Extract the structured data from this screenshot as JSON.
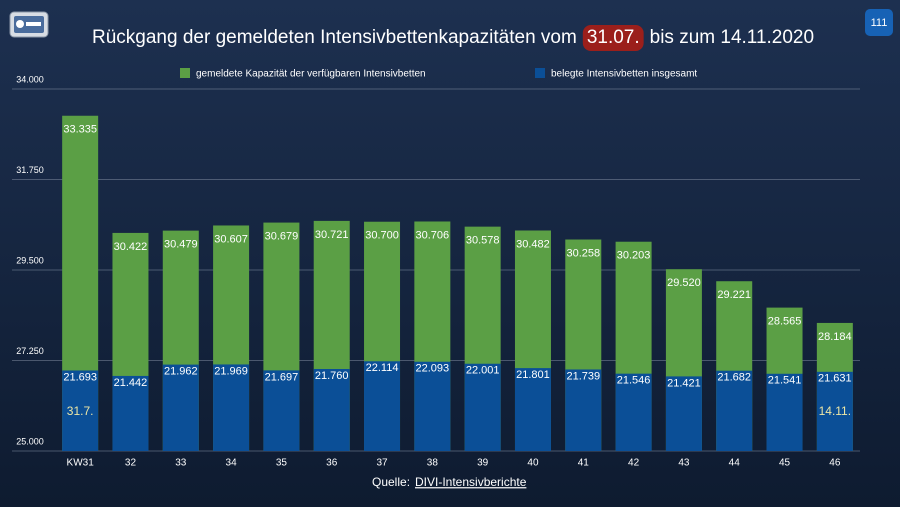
{
  "chart_data": {
    "type": "bar",
    "title": "Rückgang der gemeldeten Intensivbettenkapazitäten vom",
    "title_highlight": "31.07.",
    "title_end": "bis zum 14.11.2020",
    "page_number": "111",
    "source_label": "Quelle:",
    "source_link": "DIVI-Intensivberichte",
    "annotations": [
      "31.7.",
      "14.11."
    ],
    "categories": [
      "KW31",
      "32",
      "33",
      "34",
      "35",
      "36",
      "37",
      "38",
      "39",
      "40",
      "41",
      "42",
      "43",
      "44",
      "45",
      "46"
    ],
    "series": [
      {
        "name": "gemeldete Kapazität der verfügbaren Intensivbetten",
        "color": "#5b9f45",
        "values": [
          33335,
          30422,
          30479,
          30607,
          30679,
          30721,
          30700,
          30706,
          30578,
          30482,
          30258,
          30203,
          29520,
          29221,
          28565,
          28184
        ],
        "value_labels": [
          "33.335",
          "30.422",
          "30.479",
          "30.607",
          "30.679",
          "30.721",
          "30.700",
          "30.706",
          "30.578",
          "30.482",
          "30.258",
          "30.203",
          "29.520",
          "29.221",
          "28.565",
          "28.184"
        ]
      },
      {
        "name": "belegte Intensivbetten insgesamt",
        "color": "#0b4f97",
        "axis": "y2",
        "values": [
          21693,
          21442,
          21962,
          21969,
          21697,
          21760,
          22114,
          22093,
          22001,
          21801,
          21739,
          21546,
          21421,
          21682,
          21541,
          21631
        ],
        "value_labels": [
          "21.693",
          "21.442",
          "21.962",
          "21.969",
          "21.697",
          "21.760",
          "22.114",
          "22.093",
          "22.001",
          "21.801",
          "21.739",
          "21.546",
          "21.421",
          "21.682",
          "21.541",
          "21.631"
        ]
      }
    ],
    "ylim": [
      25000,
      34000
    ],
    "yticks": [
      {
        "value": 25000,
        "label": "25.000"
      },
      {
        "value": 27250,
        "label": "27.250"
      },
      {
        "value": 29500,
        "label": "29.500"
      },
      {
        "value": 31750,
        "label": "31.750"
      },
      {
        "value": 34000,
        "label": "34.000"
      }
    ],
    "y2lim": [
      18000,
      34600
    ],
    "grid": true
  }
}
